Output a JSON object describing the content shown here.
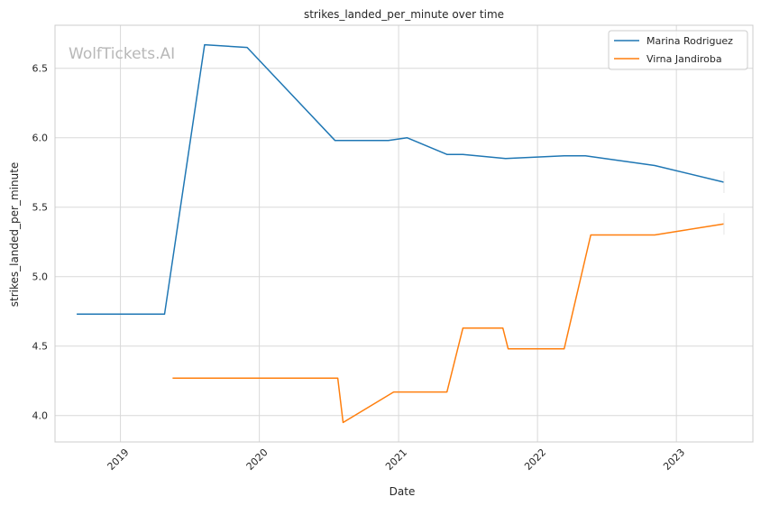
{
  "chart_data": {
    "type": "line",
    "title": "strikes_landed_per_minute over time",
    "xlabel": "Date",
    "ylabel": "strikes_landed_per_minute",
    "watermark": "WolfTickets.AI",
    "ylim": [
      3.81,
      6.81
    ],
    "xlim": [
      "2018-07-13",
      "2023-07-21"
    ],
    "x_ticks": [
      "2019",
      "2020",
      "2021",
      "2022",
      "2023"
    ],
    "y_ticks": [
      "4.0",
      "4.5",
      "5.0",
      "5.5",
      "6.0",
      "6.5"
    ],
    "grid": true,
    "legend_position": "top-right",
    "series": [
      {
        "name": "Marina Rodriguez",
        "color": "#1f77b4",
        "points": [
          {
            "x": "2018-09-08",
            "y": 4.73
          },
          {
            "x": "2019-04-27",
            "y": 4.73
          },
          {
            "x": "2019-08-10",
            "y": 6.67
          },
          {
            "x": "2019-11-30",
            "y": 6.65
          },
          {
            "x": "2020-07-18",
            "y": 5.98
          },
          {
            "x": "2020-12-05",
            "y": 5.98
          },
          {
            "x": "2021-01-23",
            "y": 6.0
          },
          {
            "x": "2021-05-08",
            "y": 5.88
          },
          {
            "x": "2021-06-19",
            "y": 5.88
          },
          {
            "x": "2021-10-09",
            "y": 5.85
          },
          {
            "x": "2022-03-12",
            "y": 5.87
          },
          {
            "x": "2022-05-07",
            "y": 5.87
          },
          {
            "x": "2022-11-05",
            "y": 5.8
          },
          {
            "x": "2023-05-06",
            "y": 5.68
          }
        ]
      },
      {
        "name": "Virna Jandiroba",
        "color": "#ff7f0e",
        "points": [
          {
            "x": "2019-05-18",
            "y": 4.27
          },
          {
            "x": "2020-07-25",
            "y": 4.27
          },
          {
            "x": "2020-08-08",
            "y": 3.95
          },
          {
            "x": "2020-12-19",
            "y": 4.17
          },
          {
            "x": "2021-05-08",
            "y": 4.17
          },
          {
            "x": "2021-06-19",
            "y": 4.63
          },
          {
            "x": "2021-10-02",
            "y": 4.63
          },
          {
            "x": "2021-10-16",
            "y": 4.48
          },
          {
            "x": "2022-03-12",
            "y": 4.48
          },
          {
            "x": "2022-05-21",
            "y": 5.3
          },
          {
            "x": "2022-11-05",
            "y": 5.3
          },
          {
            "x": "2023-05-06",
            "y": 5.38
          }
        ]
      }
    ]
  }
}
